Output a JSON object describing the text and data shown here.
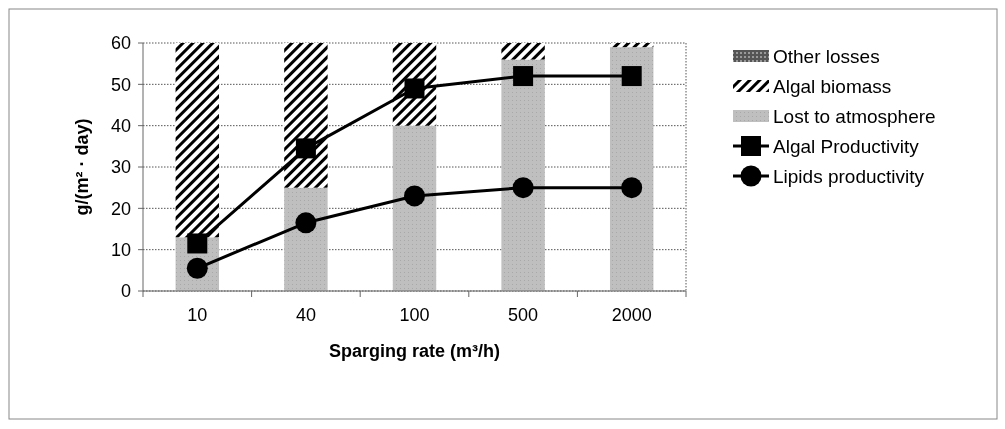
{
  "chart_data": {
    "type": "bar",
    "stacked": true,
    "xlabel": "Sparging rate (m³/h)",
    "ylabel": "g/(m² · day)",
    "categories": [
      "10",
      "40",
      "100",
      "500",
      "2000"
    ],
    "series": [
      {
        "name": "Lost to atmosphere",
        "color": "#bfbfbf",
        "values": [
          13,
          25,
          40,
          56,
          59
        ]
      },
      {
        "name": "Algal biomass",
        "color": "#000000",
        "values": [
          47,
          35,
          20,
          4,
          1
        ]
      },
      {
        "name": "Other losses",
        "color": "#555555",
        "values": [
          0,
          0,
          0,
          0,
          0
        ]
      },
      {
        "name": "Algal Productivity",
        "type": "line",
        "marker": "square",
        "color": "#000000",
        "values": [
          11.5,
          34.5,
          49,
          52,
          52
        ]
      },
      {
        "name": "Lipids productivity",
        "type": "line",
        "marker": "circle",
        "color": "#000000",
        "values": [
          5.5,
          16.5,
          23,
          25,
          25
        ]
      }
    ],
    "ylim": [
      0,
      60
    ],
    "yticks": [
      0,
      10,
      20,
      30,
      40,
      50,
      60
    ],
    "grid": "y",
    "legend": "right"
  }
}
